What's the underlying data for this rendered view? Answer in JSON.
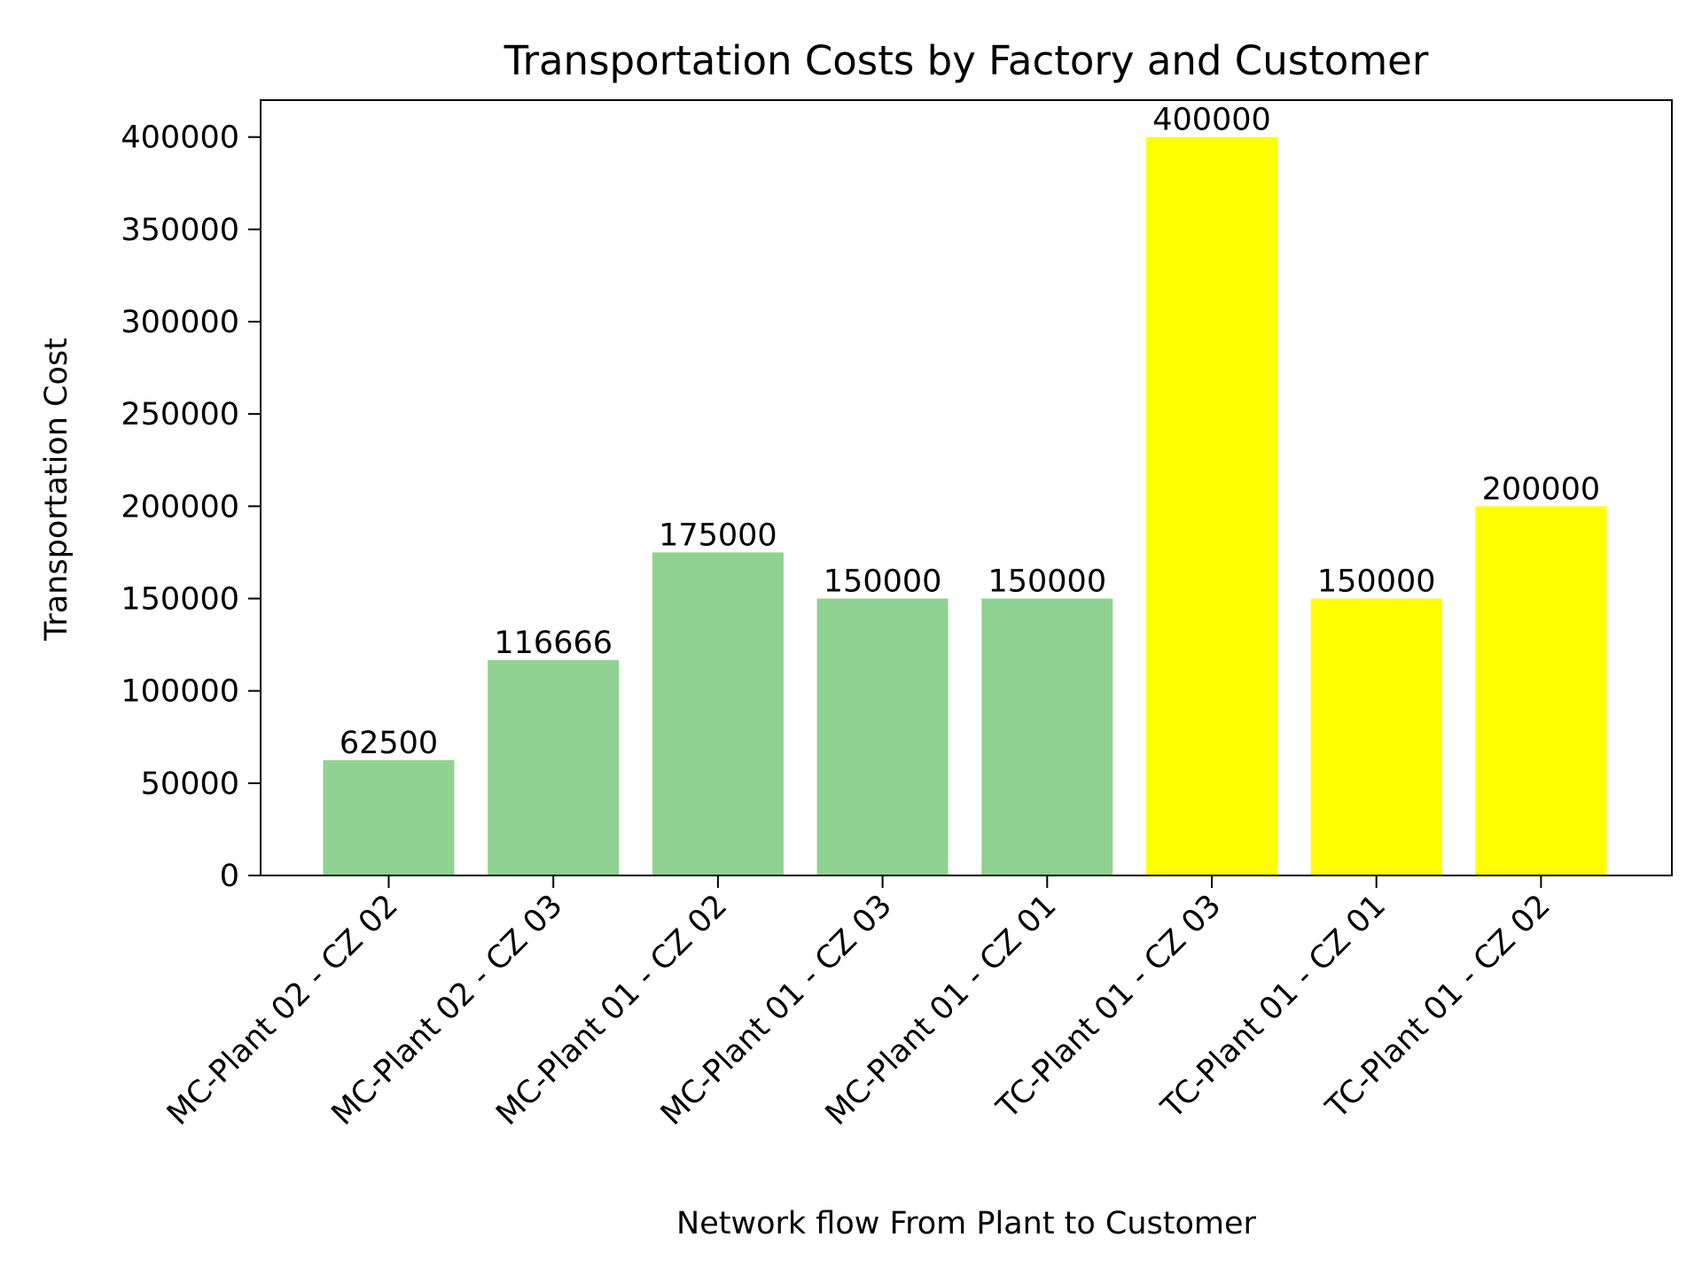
{
  "chart_data": {
    "type": "bar",
    "title": "Transportation Costs by Factory and Customer",
    "xlabel": "Network flow From Plant to Customer",
    "ylabel": "Transportation Cost",
    "categories": [
      "MC-Plant 02 - CZ 02",
      "MC-Plant 02 - CZ 03",
      "MC-Plant 01 - CZ 02",
      "MC-Plant 01 - CZ 03",
      "MC-Plant 01 - CZ 01",
      "TC-Plant 01 - CZ 03",
      "TC-Plant 01 - CZ 01",
      "TC-Plant 01 - CZ 02"
    ],
    "values": [
      62500,
      116666,
      175000,
      150000,
      150000,
      400000,
      150000,
      200000
    ],
    "value_labels": [
      "62500",
      "116666",
      "175000",
      "150000",
      "150000",
      "400000",
      "150000",
      "200000"
    ],
    "bar_colors": [
      "#8fd291",
      "#8fd291",
      "#8fd291",
      "#8fd291",
      "#8fd291",
      "#ffff00",
      "#ffff00",
      "#ffff00"
    ],
    "ylim": [
      0,
      420000
    ],
    "yticks": [
      0,
      50000,
      100000,
      150000,
      200000,
      250000,
      300000,
      350000,
      400000
    ],
    "ytick_labels": [
      "0",
      "50000",
      "100000",
      "150000",
      "200000",
      "250000",
      "300000",
      "350000",
      "400000"
    ],
    "grid": false,
    "legend": "none"
  }
}
